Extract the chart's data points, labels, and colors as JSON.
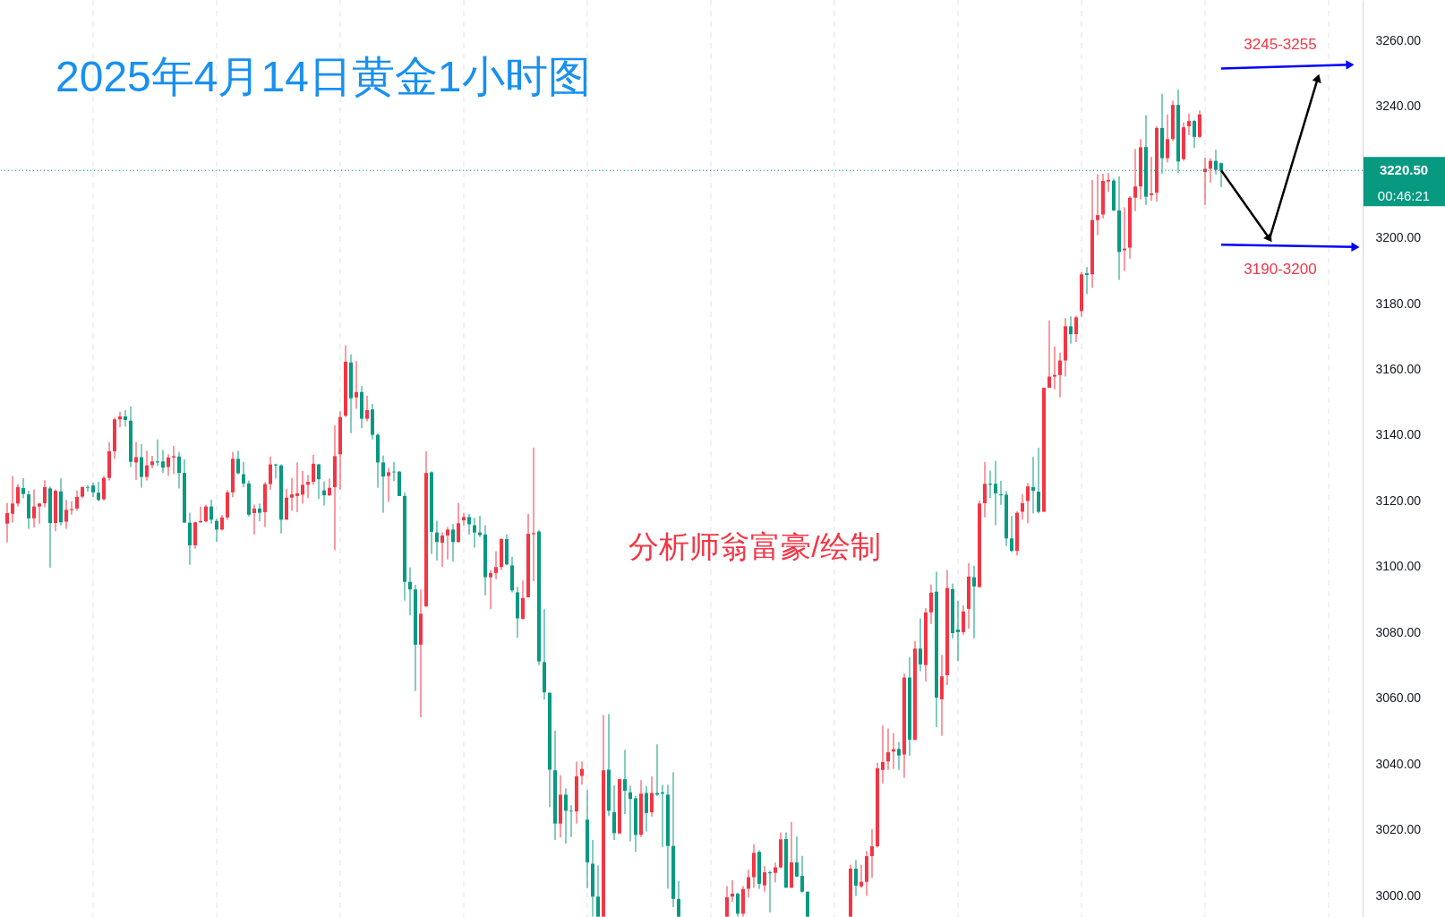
{
  "chart_data": {
    "type": "candlestick",
    "title": "2025年4月14日黄金1小时图",
    "categories": [
      null,
      null,
      null,
      null,
      null,
      null,
      null,
      null,
      null,
      null,
      null,
      null,
      null,
      null,
      null,
      null,
      null,
      null,
      null,
      null,
      null,
      null,
      null,
      null,
      null,
      null,
      null,
      null,
      null,
      null,
      null,
      null,
      null,
      null,
      null,
      null,
      null,
      null,
      null,
      null,
      null,
      null,
      null,
      null,
      null,
      null,
      null,
      null,
      null,
      null,
      null,
      null,
      null,
      null,
      null,
      null,
      null,
      null,
      null,
      null,
      null,
      null,
      null,
      null,
      null,
      null,
      null,
      null,
      null,
      null,
      null,
      null,
      null,
      null,
      null,
      null,
      null,
      null,
      null,
      null,
      null,
      null,
      null,
      null,
      null,
      null,
      null,
      null,
      null,
      null,
      null,
      null,
      null,
      null,
      null,
      null,
      null,
      null,
      null,
      null,
      null,
      null,
      null,
      null,
      null,
      null,
      null,
      null,
      null,
      null,
      null,
      null,
      null,
      null,
      null,
      null,
      null,
      null,
      null,
      null,
      null,
      null,
      null,
      null,
      null,
      null,
      null,
      null,
      null,
      null,
      null,
      null,
      null,
      null,
      null,
      null,
      null,
      null,
      null,
      null,
      null,
      null,
      null,
      null,
      null,
      null,
      null,
      null,
      null,
      null,
      null,
      null,
      null,
      null,
      null,
      null,
      null,
      null,
      null,
      null,
      null,
      null,
      null,
      null,
      null,
      null,
      null,
      null,
      null,
      null,
      null,
      null,
      null,
      null,
      null,
      null,
      null,
      null,
      null,
      null,
      null,
      null,
      null,
      null,
      null,
      null,
      null,
      null,
      null,
      null,
      null,
      null,
      null,
      null,
      null,
      null,
      null,
      null,
      null,
      null,
      null,
      null,
      null,
      null,
      null,
      null,
      null,
      null,
      null,
      null,
      null,
      null,
      null,
      null,
      null,
      null,
      null,
      null,
      null,
      null,
      null,
      null,
      null,
      null,
      null,
      null,
      null,
      null,
      null,
      null,
      null,
      null,
      null,
      null,
      null,
      null,
      null,
      null,
      null,
      null,
      null,
      null,
      null,
      null,
      null,
      null,
      null,
      null,
      null,
      null,
      null,
      null
    ],
    "ohlc": [
      [
        3113.1,
        3119.4,
        3107.4,
        3116.3
      ],
      [
        3116.1,
        3127.6,
        3113.4,
        3119.2
      ],
      [
        3119.2,
        3125.1,
        3118.3,
        3124.2
      ],
      [
        3123.9,
        3126.9,
        3120.8,
        3122.1
      ],
      [
        3122.0,
        3123.1,
        3111.5,
        3114.7
      ],
      [
        3114.7,
        3123.5,
        3111.9,
        3118.3
      ],
      [
        3118.3,
        3119.4,
        3113.1,
        3119.2
      ],
      [
        3119.3,
        3126.3,
        3118.1,
        3124.2
      ],
      [
        3123.8,
        3124.4,
        3099.7,
        3113.3
      ],
      [
        3113.3,
        3123.5,
        3110.8,
        3123.1
      ],
      [
        3122.9,
        3126.9,
        3112.6,
        3113.5
      ],
      [
        3113.7,
        3120.3,
        3111.5,
        3117.3
      ],
      [
        3117.2,
        3119.9,
        3115.8,
        3117.5
      ],
      [
        3117.7,
        3123.2,
        3117.0,
        3121.2
      ],
      [
        3121.3,
        3124.4,
        3120.8,
        3124.2
      ],
      [
        3124.2,
        3124.8,
        3122.8,
        3124.0
      ],
      [
        3124.7,
        3125.6,
        3121.2,
        3122.6
      ],
      [
        3122.5,
        3125.8,
        3119.9,
        3120.3
      ],
      [
        3120.5,
        3127.6,
        3120.1,
        3127.0
      ],
      [
        3127.0,
        3137.9,
        3126.2,
        3135.1
      ],
      [
        3135.1,
        3145.3,
        3132.8,
        3144.8
      ],
      [
        3144.8,
        3147.1,
        3142.4,
        3145.7
      ],
      [
        3145.7,
        3147.6,
        3142.6,
        3144.6
      ],
      [
        3144.4,
        3148.7,
        3130.3,
        3131.9
      ],
      [
        3131.7,
        3137.9,
        3126.4,
        3133.3
      ],
      [
        3133.3,
        3137.3,
        3124.0,
        3127.3
      ],
      [
        3127.3,
        3135.3,
        3126.2,
        3130.8
      ],
      [
        3130.9,
        3133.7,
        3129.9,
        3132.0
      ],
      [
        3132.0,
        3138.7,
        3130.6,
        3131.7
      ],
      [
        3132.0,
        3135.5,
        3128.5,
        3130.1
      ],
      [
        3130.3,
        3134.2,
        3127.6,
        3133.2
      ],
      [
        3133.2,
        3136.7,
        3128.2,
        3133.6
      ],
      [
        3133.5,
        3134.9,
        3123.8,
        3128.5
      ],
      [
        3128.5,
        3132.6,
        3113.4,
        3113.4
      ],
      [
        3113.4,
        3116.4,
        3100.6,
        3106.5
      ],
      [
        3106.5,
        3113.7,
        3105.5,
        3113.5
      ],
      [
        3113.5,
        3118.3,
        3113.3,
        3113.9
      ],
      [
        3113.8,
        3118.8,
        3113.5,
        3118.3
      ],
      [
        3118.3,
        3120.4,
        3113.1,
        3114.3
      ],
      [
        3113.9,
        3114.6,
        3107.6,
        3111.3
      ],
      [
        3111.3,
        3115.7,
        3111.0,
        3115.0
      ],
      [
        3115.0,
        3123.3,
        3114.3,
        3122.6
      ],
      [
        3122.6,
        3134.9,
        3121.1,
        3132.8
      ],
      [
        3132.8,
        3135.3,
        3128.1,
        3128.4
      ],
      [
        3128.1,
        3131.9,
        3124.2,
        3125.3
      ],
      [
        3125.3,
        3126.2,
        3115.3,
        3115.8
      ],
      [
        3116.3,
        3118.9,
        3109.8,
        3117.7
      ],
      [
        3117.7,
        3119.2,
        3113.8,
        3116.4
      ],
      [
        3116.6,
        3125.7,
        3112.1,
        3125.1
      ],
      [
        3125.1,
        3133.5,
        3123.4,
        3131.1
      ],
      [
        3131.1,
        3131.3,
        3126.8,
        3130.8
      ],
      [
        3130.8,
        3131.1,
        3110.1,
        3114.3
      ],
      [
        3114.3,
        3123.7,
        3114.3,
        3121.0
      ],
      [
        3121.0,
        3127.0,
        3117.0,
        3122.0
      ],
      [
        3121.5,
        3131.7,
        3116.6,
        3122.3
      ],
      [
        3121.9,
        3129.1,
        3119.2,
        3124.9
      ],
      [
        3124.9,
        3127.9,
        3120.9,
        3125.8
      ],
      [
        3125.8,
        3134.0,
        3124.9,
        3131.3
      ],
      [
        3131.1,
        3131.3,
        3120.6,
        3126.6
      ],
      [
        3123.2,
        3125.9,
        3118.6,
        3121.7
      ],
      [
        3121.7,
        3126.8,
        3121.5,
        3124.0
      ],
      [
        3124.2,
        3143.0,
        3105.0,
        3133.6
      ],
      [
        3134.2,
        3147.2,
        3123.4,
        3145.5
      ],
      [
        3145.9,
        3167.3,
        3145.5,
        3162.3
      ],
      [
        3162.1,
        3164.6,
        3140.6,
        3151.2
      ],
      [
        3151.5,
        3162.5,
        3148.0,
        3153.1
      ],
      [
        3153.1,
        3154.9,
        3142.1,
        3145.0
      ],
      [
        3145.0,
        3152.0,
        3144.2,
        3147.6
      ],
      [
        3147.8,
        3149.5,
        3138.7,
        3140.1
      ],
      [
        3140.1,
        3140.6,
        3124.0,
        3131.7
      ],
      [
        3131.7,
        3133.8,
        3116.4,
        3127.4
      ],
      [
        3127.6,
        3130.0,
        3119.7,
        3128.7
      ],
      [
        3128.9,
        3131.9,
        3126.0,
        3128.7
      ],
      [
        3128.9,
        3129.1,
        3121.5,
        3121.5
      ],
      [
        3121.5,
        3122.6,
        3089.7,
        3095.4
      ],
      [
        3095.4,
        3099.8,
        3085.2,
        3093.1
      ],
      [
        3093.1,
        3094.5,
        3062.2,
        3076.3
      ],
      [
        3076.3,
        3093.1,
        3054.2,
        3085.7
      ],
      [
        3087.9,
        3135.1,
        3087.9,
        3128.5
      ],
      [
        3128.7,
        3129.0,
        3103.9,
        3110.6
      ],
      [
        3110.4,
        3114.0,
        3101.9,
        3107.5
      ],
      [
        3107.3,
        3110.4,
        3099.9,
        3109.5
      ],
      [
        3109.5,
        3112.1,
        3102.2,
        3111.3
      ],
      [
        3111.3,
        3113.0,
        3101.6,
        3107.5
      ],
      [
        3107.5,
        3119.4,
        3107.3,
        3113.2
      ],
      [
        3114.1,
        3116.4,
        3112.4,
        3115.1
      ],
      [
        3115.1,
        3116.0,
        3109.8,
        3112.9
      ],
      [
        3112.6,
        3114.9,
        3105.8,
        3110.4
      ],
      [
        3110.4,
        3115.5,
        3109.0,
        3109.6
      ],
      [
        3109.8,
        3112.6,
        3091.3,
        3096.8
      ],
      [
        3096.8,
        3099.0,
        3087.1,
        3098.1
      ],
      [
        3098.1,
        3104.7,
        3096.2,
        3099.9
      ],
      [
        3099.9,
        3108.7,
        3099.0,
        3108.4
      ],
      [
        3108.4,
        3109.8,
        3100.5,
        3100.7
      ],
      [
        3100.4,
        3103.0,
        3092.2,
        3092.8
      ],
      [
        3092.2,
        3093.9,
        3078.4,
        3084.3
      ],
      [
        3084.1,
        3095.8,
        3084.1,
        3090.5
      ],
      [
        3090.7,
        3116.0,
        3090.7,
        3110.0
      ],
      [
        3109.9,
        3136.2,
        3095.6,
        3110.2
      ],
      [
        3110.7,
        3111.2,
        3070.1,
        3071.2
      ],
      [
        3071.0,
        3087.1,
        3059.6,
        3061.8
      ],
      [
        3061.7,
        3061.7,
        3026.9,
        3038.3
      ],
      [
        3038.1,
        3050.2,
        3016.9,
        3021.9
      ],
      [
        3021.9,
        3036.6,
        3017.7,
        3030.7
      ],
      [
        3030.7,
        3032.6,
        3015.8,
        3025.8
      ],
      [
        3025.8,
        3027.5,
        3017.8,
        3025.6
      ],
      [
        3025.6,
        3040.7,
        3021.9,
        3036.3
      ],
      [
        3036.4,
        3040.8,
        3033.7,
        3038.5
      ],
      [
        3023.1,
        3032.2,
        3002.2,
        3010.1
      ],
      [
        3009.7,
        3016.9,
        2993.6,
        2999.7
      ],
      [
        2999.7,
        3009.2,
        2993.6,
        2993.6
      ],
      [
        2993.6,
        3054.9,
        2993.6,
        3038.1
      ],
      [
        3038.3,
        3055.2,
        3024.2,
        3025.8
      ],
      [
        3025.4,
        3033.5,
        3016.9,
        3019.0
      ],
      [
        3018.9,
        3035.5,
        3018.8,
        3035.4
      ],
      [
        3035.4,
        3044.3,
        3024.8,
        3031.9
      ],
      [
        3031.4,
        3033.4,
        3016.5,
        3029.4
      ],
      [
        3029.6,
        3030.3,
        3013.3,
        3018.5
      ],
      [
        3018.5,
        3035.1,
        3017.8,
        3031.0
      ],
      [
        3031.2,
        3033.3,
        3019.5,
        3025.1
      ],
      [
        3025.3,
        3036.3,
        3024.0,
        3031.2
      ],
      [
        3031.2,
        3046.0,
        3030.3,
        3030.7
      ],
      [
        3031.4,
        3033.7,
        3014.7,
        3031.0
      ],
      [
        3030.7,
        3033.7,
        3002.1,
        3015.1
      ],
      [
        3015.1,
        3037.5,
        2996.5,
        2999.0
      ],
      [
        2999.0,
        3004.4,
        2993.6,
        2993.6
      ],
      null,
      null,
      null,
      null,
      null,
      null,
      null,
      null,
      [
        2993.6,
        3002.9,
        2993.6,
        2999.5
      ],
      [
        2999.7,
        3004.7,
        2998.1,
        3000.6
      ],
      [
        3000.6,
        3000.9,
        2993.6,
        2994.5
      ],
      [
        2994.5,
        3002.9,
        2993.6,
        3002.0
      ],
      [
        3002.1,
        3007.9,
        2999.4,
        3005.6
      ],
      [
        3005.6,
        3015.6,
        3002.4,
        3013.0
      ],
      [
        3013.3,
        3013.8,
        3002.0,
        3003.6
      ],
      [
        3003.1,
        3009.0,
        3001.2,
        3007.1
      ],
      [
        3007.1,
        3007.6,
        2994.9,
        3006.8
      ],
      [
        3006.9,
        3010.0,
        3004.0,
        3008.6
      ],
      [
        3008.6,
        3019.2,
        3008.3,
        3017.1
      ],
      [
        3017.2,
        3019.2,
        3002.4,
        3002.4
      ],
      [
        3002.4,
        3022.4,
        3002.4,
        3010.1
      ],
      [
        3010.1,
        3018.0,
        3005.6,
        3005.8
      ],
      [
        3006.0,
        3012.1,
        3000.9,
        3001.2
      ],
      [
        3001.2,
        3001.2,
        2993.6,
        2993.6
      ],
      null,
      null,
      null,
      null,
      null,
      null,
      null,
      [
        2993.6,
        3009.4,
        2993.6,
        3008.2
      ],
      [
        3008.2,
        3010.8,
        2999.9,
        3003.0
      ],
      [
        3002.8,
        3009.4,
        3002.3,
        3004.2
      ],
      [
        3004.2,
        3013.6,
        2999.9,
        3012.0
      ],
      [
        3012.0,
        3020.2,
        3005.4,
        3015.0
      ],
      [
        3015.0,
        3040.4,
        3014.6,
        3038.7
      ],
      [
        3038.2,
        3051.7,
        3034.1,
        3040.6
      ],
      [
        3040.8,
        3050.8,
        3038.2,
        3043.6
      ],
      [
        3043.8,
        3049.4,
        3038.5,
        3044.5
      ],
      [
        3044.6,
        3046.7,
        3038.2,
        3042.6
      ],
      [
        3042.9,
        3067.5,
        3035.8,
        3066.3
      ],
      [
        3066.3,
        3072.5,
        3042.5,
        3047.4
      ],
      [
        3047.4,
        3077.4,
        3047.2,
        3075.1
      ],
      [
        3075.1,
        3084.3,
        3068.2,
        3070.3
      ],
      [
        3070.1,
        3087.4,
        3065.1,
        3086.1
      ],
      [
        3086.1,
        3094.6,
        3082.6,
        3092.1
      ],
      [
        3092.4,
        3098.5,
        3051.2,
        3060.2
      ],
      [
        3059.7,
        3073.2,
        3048.6,
        3066.7
      ],
      [
        3067.0,
        3099.0,
        3064.0,
        3093.5
      ],
      [
        3093.2,
        3094.9,
        3078.2,
        3079.8
      ],
      [
        3080.9,
        3089.7,
        3071.3,
        3080.1
      ],
      [
        3080.1,
        3088.3,
        3079.3,
        3086.4
      ],
      [
        3087.2,
        3101.1,
        3081.2,
        3097.0
      ],
      [
        3096.8,
        3100.3,
        3078.2,
        3094.0
      ],
      [
        3093.8,
        3120.0,
        3093.8,
        3119.2
      ],
      [
        3119.3,
        3131.8,
        3115.0,
        3125.2
      ],
      [
        3125.2,
        3129.2,
        3120.9,
        3124.9
      ],
      [
        3125.2,
        3132.2,
        3112.6,
        3122.3
      ],
      [
        3122.0,
        3126.1,
        3118.8,
        3121.7
      ],
      [
        3121.9,
        3123.0,
        3106.3,
        3108.6
      ],
      [
        3108.6,
        3115.4,
        3104.4,
        3104.8
      ],
      [
        3104.8,
        3116.9,
        3103.4,
        3116.4
      ],
      [
        3116.7,
        3122.1,
        3114.3,
        3119.3
      ],
      [
        3120.0,
        3125.4,
        3113.2,
        3124.4
      ],
      [
        3124.2,
        3133.4,
        3116.2,
        3123.1
      ],
      [
        3122.8,
        3136.2,
        3116.2,
        3116.7
      ],
      [
        3116.7,
        3154.4,
        3116.7,
        3154.4
      ],
      [
        3154.4,
        3174.8,
        3154.4,
        3157.8
      ],
      [
        3157.8,
        3167.0,
        3153.9,
        3158.3
      ],
      [
        3158.3,
        3165.1,
        3151.5,
        3162.7
      ],
      [
        3162.7,
        3175.6,
        3157.8,
        3173.1
      ],
      [
        3173.1,
        3176.1,
        3167.8,
        3170.7
      ],
      [
        3170.7,
        3176.3,
        3168.3,
        3175.8
      ],
      [
        3177.7,
        3189.6,
        3176.0,
        3188.9
      ],
      [
        3189.2,
        3191.1,
        3182.9,
        3188.7
      ],
      [
        3188.9,
        3217.6,
        3184.8,
        3205.4
      ],
      [
        3205.4,
        3219.3,
        3200.8,
        3206.9
      ],
      [
        3207.1,
        3219.5,
        3205.9,
        3217.3
      ],
      [
        3217.1,
        3219.7,
        3213.9,
        3217.6
      ],
      [
        3217.4,
        3218.0,
        3208.1,
        3208.3
      ],
      [
        3208.3,
        3218.7,
        3187.2,
        3195.7
      ],
      [
        3196.2,
        3209.3,
        3189.9,
        3196.7
      ],
      [
        3197.0,
        3212.7,
        3193.7,
        3212.2
      ],
      [
        3212.2,
        3227.0,
        3208.1,
        3215.6
      ],
      [
        3215.6,
        3230.0,
        3211.7,
        3227.5
      ],
      [
        3227.6,
        3237.3,
        3210.0,
        3212.5
      ],
      [
        3213.0,
        3224.6,
        3211.2,
        3213.5
      ],
      [
        3213.7,
        3233.9,
        3211.0,
        3233.4
      ],
      [
        3233.4,
        3243.8,
        3219.5,
        3224.2
      ],
      [
        3224.2,
        3237.5,
        3222.9,
        3230.0
      ],
      [
        3230.0,
        3241.7,
        3229.4,
        3240.4
      ],
      [
        3240.4,
        3245.1,
        3219.7,
        3223.2
      ],
      [
        3223.9,
        3235.1,
        3223.4,
        3233.6
      ],
      [
        3233.9,
        3237.8,
        3231.2,
        3235.5
      ],
      [
        3235.5,
        3235.8,
        3227.3,
        3230.7
      ],
      [
        3230.7,
        3238.7,
        3230.4,
        3237.5
      ],
      [
        3220.0,
        3224.4,
        3210.0,
        3221.0
      ],
      [
        3221.0,
        3224.2,
        3216.8,
        3223.4
      ],
      [
        3223.4,
        3226.8,
        3219.3,
        3220.7
      ],
      [
        3222.7,
        3222.9,
        3215.4,
        3220.5
      ],
      null,
      null,
      null,
      null,
      null,
      null,
      null,
      null,
      null,
      null,
      null,
      null,
      null,
      null,
      null,
      null,
      null,
      null,
      null,
      null,
      null,
      null,
      null,
      null,
      null
    ],
    "series": [
      {
        "type": "line",
        "color": "#0000ff",
        "values": [
          null,
          null,
          null,
          null,
          null,
          null,
          null,
          null,
          null,
          null,
          null,
          null,
          null,
          null,
          null,
          null,
          null,
          null,
          null,
          null,
          null,
          null,
          null,
          null,
          null,
          null,
          null,
          null,
          null,
          null,
          null,
          null,
          null,
          null,
          null,
          null,
          null,
          null,
          null,
          null,
          null,
          null,
          null,
          null,
          null,
          null,
          null,
          null,
          null,
          null,
          null,
          null,
          null,
          null,
          null,
          null,
          null,
          null,
          null,
          null,
          null,
          null,
          null,
          null,
          null,
          null,
          null,
          null,
          null,
          null,
          null,
          null,
          null,
          null,
          null,
          null,
          null,
          null,
          null,
          null,
          null,
          null,
          null,
          null,
          null,
          null,
          null,
          null,
          null,
          null,
          null,
          null,
          null,
          null,
          null,
          null,
          null,
          null,
          null,
          null,
          null,
          null,
          null,
          null,
          null,
          null,
          null,
          null,
          null,
          null,
          null,
          null,
          null,
          null,
          null,
          null,
          null,
          null,
          null,
          null,
          null,
          null,
          null,
          null,
          null,
          null,
          null,
          null,
          null,
          null,
          null,
          null,
          null,
          null,
          null,
          null,
          null,
          null,
          null,
          null,
          null,
          null,
          null,
          null,
          null,
          null,
          null,
          null,
          null,
          null,
          null,
          null,
          null,
          null,
          null,
          null,
          null,
          null,
          null,
          null,
          null,
          null,
          null,
          null,
          null,
          null,
          null,
          null,
          null,
          null,
          null,
          null,
          null,
          null,
          null,
          null,
          null,
          null,
          null,
          null,
          null,
          null,
          null,
          null,
          null,
          null,
          null,
          null,
          null,
          null,
          null,
          null,
          null,
          null,
          null,
          null,
          null,
          null,
          null,
          null,
          null,
          null,
          null,
          null,
          null,
          null,
          null,
          null,
          null,
          null,
          null,
          null,
          null,
          null,
          null,
          null,
          null,
          null,
          null,
          null,
          null,
          null,
          null,
          null,
          null,
          null,
          3251.5,
          null,
          null,
          null,
          null,
          null,
          null,
          null,
          null,
          null,
          null,
          null,
          null,
          null,
          null,
          null,
          null,
          null,
          null,
          null,
          null,
          null,
          null,
          null,
          3252.6,
          null
        ]
      },
      {
        "type": "line",
        "color": "#0000ff",
        "values": [
          null,
          null,
          null,
          null,
          null,
          null,
          null,
          null,
          null,
          null,
          null,
          null,
          null,
          null,
          null,
          null,
          null,
          null,
          null,
          null,
          null,
          null,
          null,
          null,
          null,
          null,
          null,
          null,
          null,
          null,
          null,
          null,
          null,
          null,
          null,
          null,
          null,
          null,
          null,
          null,
          null,
          null,
          null,
          null,
          null,
          null,
          null,
          null,
          null,
          null,
          null,
          null,
          null,
          null,
          null,
          null,
          null,
          null,
          null,
          null,
          null,
          null,
          null,
          null,
          null,
          null,
          null,
          null,
          null,
          null,
          null,
          null,
          null,
          null,
          null,
          null,
          null,
          null,
          null,
          null,
          null,
          null,
          null,
          null,
          null,
          null,
          null,
          null,
          null,
          null,
          null,
          null,
          null,
          null,
          null,
          null,
          null,
          null,
          null,
          null,
          null,
          null,
          null,
          null,
          null,
          null,
          null,
          null,
          null,
          null,
          null,
          null,
          null,
          null,
          null,
          null,
          null,
          null,
          null,
          null,
          null,
          null,
          null,
          null,
          null,
          null,
          null,
          null,
          null,
          null,
          null,
          null,
          null,
          null,
          null,
          null,
          null,
          null,
          null,
          null,
          null,
          null,
          null,
          null,
          null,
          null,
          null,
          null,
          null,
          null,
          null,
          null,
          null,
          null,
          null,
          null,
          null,
          null,
          null,
          null,
          null,
          null,
          null,
          null,
          null,
          null,
          null,
          null,
          null,
          null,
          null,
          null,
          null,
          null,
          null,
          null,
          null,
          null,
          null,
          null,
          null,
          null,
          null,
          null,
          null,
          null,
          null,
          null,
          null,
          null,
          null,
          null,
          null,
          null,
          null,
          null,
          null,
          null,
          null,
          null,
          null,
          null,
          null,
          null,
          null,
          null,
          null,
          null,
          null,
          null,
          null,
          null,
          null,
          null,
          null,
          null,
          null,
          null,
          null,
          null,
          null,
          null,
          null,
          null,
          null,
          null,
          3197.9,
          null,
          null,
          null,
          null,
          null,
          null,
          null,
          null,
          null,
          null,
          null,
          null,
          null,
          null,
          null,
          null,
          null,
          null,
          null,
          null,
          null,
          null,
          null,
          null,
          3197.2
        ]
      },
      {
        "type": "line",
        "color": "#000000",
        "values": [
          null,
          null,
          null,
          null,
          null,
          null,
          null,
          null,
          null,
          null,
          null,
          null,
          null,
          null,
          null,
          null,
          null,
          null,
          null,
          null,
          null,
          null,
          null,
          null,
          null,
          null,
          null,
          null,
          null,
          null,
          null,
          null,
          null,
          null,
          null,
          null,
          null,
          null,
          null,
          null,
          null,
          null,
          null,
          null,
          null,
          null,
          null,
          null,
          null,
          null,
          null,
          null,
          null,
          null,
          null,
          null,
          null,
          null,
          null,
          null,
          null,
          null,
          null,
          null,
          null,
          null,
          null,
          null,
          null,
          null,
          null,
          null,
          null,
          null,
          null,
          null,
          null,
          null,
          null,
          null,
          null,
          null,
          null,
          null,
          null,
          null,
          null,
          null,
          null,
          null,
          null,
          null,
          null,
          null,
          null,
          null,
          null,
          null,
          null,
          null,
          null,
          null,
          null,
          null,
          null,
          null,
          null,
          null,
          null,
          null,
          null,
          null,
          null,
          null,
          null,
          null,
          null,
          null,
          null,
          null,
          null,
          null,
          null,
          null,
          null,
          null,
          null,
          null,
          null,
          null,
          null,
          null,
          null,
          null,
          null,
          null,
          null,
          null,
          null,
          null,
          null,
          null,
          null,
          null,
          null,
          null,
          null,
          null,
          null,
          null,
          null,
          null,
          null,
          null,
          null,
          null,
          null,
          null,
          null,
          null,
          null,
          null,
          null,
          null,
          null,
          null,
          null,
          null,
          null,
          null,
          null,
          null,
          null,
          null,
          null,
          null,
          null,
          null,
          null,
          null,
          null,
          null,
          null,
          null,
          null,
          null,
          null,
          null,
          null,
          null,
          null,
          null,
          null,
          null,
          null,
          null,
          null,
          null,
          null,
          null,
          null,
          null,
          null,
          null,
          null,
          null,
          null,
          null,
          null,
          null,
          null,
          null,
          null,
          null,
          null,
          null,
          null,
          null,
          null,
          null,
          null,
          null,
          null,
          null,
          null,
          null,
          3220.5,
          null,
          null,
          null,
          null,
          null,
          null,
          null,
          null,
          3199.7,
          null,
          null,
          null,
          null,
          null,
          null,
          null,
          null,
          3248.6,
          null,
          null,
          null,
          null,
          null,
          null,
          null
        ]
      }
    ],
    "ylim": [
      2993.5,
      3272.3
    ],
    "yticks": [
      {
        "value": 3000,
        "label": "3000.00"
      },
      {
        "value": 3020,
        "label": "3020.00"
      },
      {
        "value": 3040,
        "label": "3040.00"
      },
      {
        "value": 3060,
        "label": "3060.00"
      },
      {
        "value": 3080,
        "label": "3080.00"
      },
      {
        "value": 3100,
        "label": "3100.00"
      },
      {
        "value": 3120,
        "label": "3120.00"
      },
      {
        "value": 3140,
        "label": "3140.00"
      },
      {
        "value": 3160,
        "label": "3160.00"
      },
      {
        "value": 3180,
        "label": "3180.00"
      },
      {
        "value": 3200,
        "label": "3200.00"
      },
      {
        "value": 3240,
        "label": "3240.00"
      },
      {
        "value": 3260,
        "label": "3260.00"
      }
    ],
    "ref_lines": [
      {
        "axis": "y",
        "value": 3220.5,
        "label": "3220.50",
        "color": "#089981",
        "line_style": "dotted"
      }
    ],
    "annotations": [
      "3245-3255",
      "3190-3200",
      "分析师翁富豪/绘制",
      "00:46:21"
    ],
    "grid": "x"
  }
}
